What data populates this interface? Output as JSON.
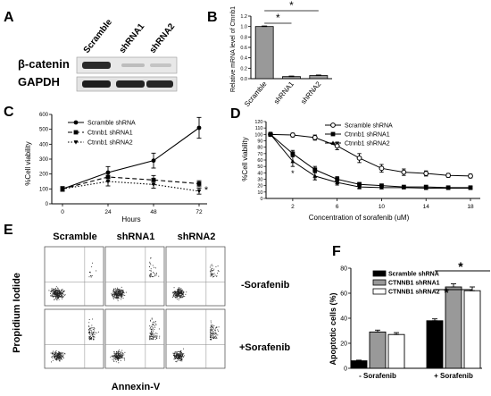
{
  "panels": {
    "A": {
      "letter": "A",
      "columns": [
        "Scramble",
        "shRNA1",
        "shRNA2"
      ],
      "rows": [
        "β-catenin",
        "GAPDH"
      ]
    },
    "E": {
      "letter": "E",
      "columns": [
        "Scramble",
        "shRNA1",
        "shRNA2"
      ],
      "row_labels": [
        "-Sorafenib",
        "+Sorafenib"
      ],
      "ylabel": "Propidium Iodide",
      "xlabel": "Annexin-V"
    }
  },
  "chart_data": [
    {
      "id": "B",
      "letter": "B",
      "type": "bar",
      "categories": [
        "Scramble",
        "shRNA1",
        "shRNA2"
      ],
      "values": [
        1.0,
        0.04,
        0.06
      ],
      "errors": [
        0.01,
        0.01,
        0.01
      ],
      "ylabel": "Relative mRNA level of Ctnnb1",
      "ylim": [
        0,
        1.2
      ],
      "yticks": [
        "0.0",
        "0.2",
        "0.4",
        "0.6",
        "0.8",
        "1.0",
        "1.2"
      ],
      "annotations": [
        "*",
        "*"
      ],
      "color": "#999999"
    },
    {
      "id": "C",
      "letter": "C",
      "type": "line",
      "x": [
        0,
        24,
        48,
        72
      ],
      "xticks": [
        "0",
        "24",
        "48",
        "72"
      ],
      "xlabel": "Hours",
      "ylabel": "%Cell viability",
      "ylim": [
        0,
        600
      ],
      "yticks": [
        "0",
        "100",
        "200",
        "300",
        "400",
        "500",
        "600"
      ],
      "series": [
        {
          "name": "Scramble shRNA",
          "values": [
            100,
            210,
            290,
            510
          ],
          "errors": [
            15,
            40,
            50,
            70
          ],
          "marker": "circle",
          "dash": "solid"
        },
        {
          "name": "Ctnnb1 shRNA1",
          "values": [
            100,
            180,
            160,
            135
          ],
          "errors": [
            15,
            30,
            30,
            20
          ],
          "marker": "square",
          "dash": "dashed"
        },
        {
          "name": "Ctnnb1 shRNA2",
          "values": [
            100,
            150,
            130,
            85
          ],
          "errors": [
            15,
            30,
            25,
            20
          ],
          "marker": "triangle-down",
          "dash": "dotted"
        }
      ],
      "annotations": [
        "*"
      ]
    },
    {
      "id": "D",
      "letter": "D",
      "type": "line",
      "x": [
        0,
        2,
        4,
        6,
        8,
        10,
        12,
        14,
        16,
        18
      ],
      "xticks": [
        "2",
        "6",
        "10",
        "14",
        "18"
      ],
      "xlabel": "Concentration of sorafenib (uM)",
      "ylabel": "%Cell viability",
      "ylim": [
        0,
        120
      ],
      "yticks": [
        "0",
        "10",
        "20",
        "30",
        "40",
        "50",
        "60",
        "70",
        "80",
        "90",
        "100",
        "110",
        "120"
      ],
      "series": [
        {
          "name": "Scramble shRNA",
          "values": [
            100,
            99,
            95,
            82,
            63,
            47,
            41,
            39,
            36,
            35
          ],
          "errors": [
            3,
            3,
            4,
            6,
            7,
            6,
            5,
            4,
            3,
            3
          ],
          "marker": "circle-open"
        },
        {
          "name": "Ctnnb1 shRNA1",
          "values": [
            100,
            70,
            45,
            30,
            22,
            20,
            18,
            18,
            17,
            17
          ],
          "errors": [
            3,
            5,
            5,
            4,
            3,
            2,
            2,
            2,
            2,
            2
          ],
          "marker": "square"
        },
        {
          "name": "Ctnnb1 shRNA2",
          "values": [
            100,
            58,
            35,
            25,
            18,
            17,
            17,
            16,
            16,
            16
          ],
          "errors": [
            3,
            8,
            6,
            4,
            3,
            2,
            2,
            2,
            2,
            2
          ],
          "marker": "triangle"
        }
      ],
      "annotations": [
        "*",
        "*",
        "*",
        "*",
        "*",
        "*",
        "*",
        "*",
        "*"
      ]
    },
    {
      "id": "F",
      "letter": "F",
      "type": "bar",
      "categories": [
        "- Sorafenib",
        "+ Sorafenib"
      ],
      "series": [
        {
          "name": "Scramble shRNA",
          "values": [
            6,
            38
          ],
          "errors": [
            0.5,
            1.5
          ],
          "color": "#000000"
        },
        {
          "name": "CTNNB1 shRNA1",
          "values": [
            29,
            65
          ],
          "errors": [
            1.5,
            2.5
          ],
          "color": "#999999"
        },
        {
          "name": "CTNNB1 shRNA2",
          "values": [
            27,
            62
          ],
          "errors": [
            1.5,
            3
          ],
          "color": "#ffffff"
        }
      ],
      "ylabel": "Apoptotic cells (%)",
      "ylim": [
        0,
        80
      ],
      "yticks": [
        "0",
        "20",
        "40",
        "60",
        "80"
      ],
      "annotations": [
        "*",
        "*"
      ]
    }
  ]
}
